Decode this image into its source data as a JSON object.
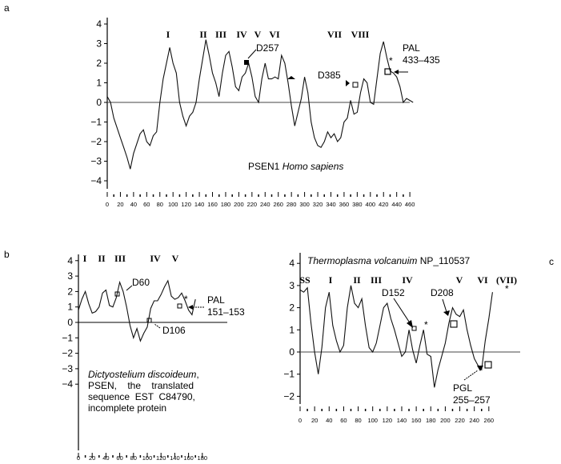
{
  "figure": {
    "panels": [
      {
        "id": "a",
        "panel_label": "a",
        "title_plain": "PSEN1 ",
        "title_italic": "Homo sapiens",
        "domains": [
          "I",
          "II",
          "III",
          "IV",
          "V",
          "VI",
          "VII",
          "VIII"
        ],
        "annotations": [
          "D257",
          "D385",
          "PAL",
          "433–435",
          "*"
        ],
        "yticks": [
          "4",
          "3",
          "2",
          "1",
          "0",
          "−1",
          "−2",
          "−3",
          "−4"
        ],
        "xticks": [
          "0",
          "20",
          "40",
          "60",
          "80",
          "100",
          "120",
          "140",
          "160",
          "180",
          "200",
          "220",
          "240",
          "260",
          "280",
          "300",
          "320",
          "340",
          "360",
          "380",
          "400",
          "420",
          "440",
          "460"
        ]
      },
      {
        "id": "b",
        "panel_label": "b",
        "title_italic": "Dictyostelium discoideum",
        "title_lines": [
          ",",
          "PSEN,    the    translated",
          "sequence  EST  C84790,",
          "incomplete protein"
        ],
        "domains": [
          "I",
          "II",
          "III",
          "IV",
          "V"
        ],
        "annotations": [
          "D60",
          "D106",
          "PAL",
          "151–153",
          "*"
        ],
        "yticks": [
          "4",
          "3",
          "2",
          "1",
          "0",
          "−1",
          "−2",
          "−3",
          "−4"
        ],
        "xticks": [
          "0",
          "20",
          "40",
          "60",
          "80",
          "100",
          "120",
          "140",
          "160",
          "180"
        ]
      },
      {
        "id": "c",
        "panel_label": "c",
        "title_italic": "Thermoplasma volcanuim",
        "title_plain": " NP_110537",
        "domains": [
          "SS",
          "I",
          "II",
          "III",
          "IV",
          "V",
          "VI",
          "(VII)"
        ],
        "annotations": [
          "D152",
          "D208",
          "PGL",
          "255–257",
          "*",
          "*"
        ],
        "yticks": [
          "4",
          "3",
          "2",
          "1",
          "0",
          "−1",
          "−2"
        ],
        "xticks": [
          "0",
          "20",
          "40",
          "60",
          "80",
          "100",
          "120",
          "140",
          "160",
          "180",
          "200",
          "220",
          "240",
          "260"
        ]
      }
    ]
  },
  "chart_data": [
    {
      "type": "line",
      "title": "PSEN1 Homo sapiens",
      "xlabel": "",
      "ylabel": "",
      "xlim": [
        0,
        467
      ],
      "ylim": [
        -4,
        4
      ],
      "grid": false,
      "legend": "none",
      "domain_labels": [
        "I",
        "II",
        "III",
        "IV",
        "V",
        "VI",
        "VII",
        "VIII"
      ],
      "annotations": [
        {
          "text": "D257",
          "x": 257,
          "y": 2.0
        },
        {
          "text": "D385",
          "x": 385,
          "y": 1.0
        },
        {
          "text": "PAL 433–435",
          "x": 433,
          "y": 1.5
        },
        {
          "text": "*",
          "x": 430,
          "y": 1.9
        }
      ],
      "x": [
        0,
        5,
        10,
        15,
        20,
        25,
        30,
        35,
        40,
        45,
        50,
        55,
        60,
        65,
        70,
        75,
        80,
        85,
        90,
        95,
        100,
        105,
        110,
        115,
        120,
        125,
        130,
        135,
        140,
        145,
        150,
        155,
        160,
        165,
        170,
        175,
        180,
        185,
        190,
        195,
        200,
        205,
        210,
        215,
        220,
        225,
        230,
        235,
        240,
        245,
        250,
        255,
        260,
        265,
        270,
        275,
        280,
        285,
        290,
        295,
        300,
        305,
        310,
        315,
        320,
        325,
        330,
        335,
        340,
        345,
        350,
        355,
        360,
        365,
        370,
        375,
        380,
        385,
        390,
        395,
        400,
        405,
        410,
        415,
        420,
        425,
        430,
        435,
        440,
        445,
        450,
        455,
        460,
        465
      ],
      "values": [
        0.3,
        0.0,
        -0.8,
        -1.3,
        -1.8,
        -2.3,
        -2.8,
        -3.4,
        -2.6,
        -2.1,
        -1.6,
        -1.4,
        -2.0,
        -2.2,
        -1.7,
        -1.5,
        0.0,
        1.2,
        2.0,
        2.8,
        2.0,
        1.5,
        0.0,
        -0.7,
        -1.2,
        -0.7,
        -0.5,
        0.0,
        1.2,
        2.2,
        3.2,
        2.4,
        1.5,
        1.0,
        0.3,
        1.5,
        2.4,
        2.6,
        1.8,
        0.8,
        0.6,
        1.3,
        1.5,
        2.0,
        1.3,
        0.3,
        0.0,
        1.2,
        2.0,
        1.2,
        1.2,
        1.3,
        1.2,
        2.4,
        2.0,
        1.0,
        -0.2,
        -1.2,
        -0.5,
        0.2,
        1.3,
        0.5,
        -1.0,
        -1.8,
        -2.2,
        -2.3,
        -2.0,
        -1.5,
        -1.8,
        -1.6,
        -2.0,
        -1.8,
        -1.0,
        -0.8,
        0.1,
        -0.6,
        -0.5,
        0.5,
        1.2,
        1.0,
        0.0,
        -0.1,
        1.2,
        2.5,
        3.1,
        2.3,
        1.6,
        1.5,
        1.3,
        0.8,
        0.0,
        0.2,
        0.1,
        0.0
      ]
    },
    {
      "type": "line",
      "title": "Dictyostelium discoideum, PSEN, the translated sequence EST C84790, incomplete protein",
      "xlabel": "",
      "ylabel": "",
      "xlim": [
        0,
        180
      ],
      "ylim": [
        -4,
        4
      ],
      "grid": false,
      "legend": "none",
      "domain_labels": [
        "I",
        "II",
        "III",
        "IV",
        "V"
      ],
      "annotations": [
        {
          "text": "D60",
          "x": 60,
          "y": 2.2
        },
        {
          "text": "D106",
          "x": 106,
          "y": 0.9
        },
        {
          "text": "PAL 151–153",
          "x": 151,
          "y": 1.6
        },
        {
          "text": "*",
          "x": 150,
          "y": 1.9
        }
      ],
      "x": [
        0,
        5,
        10,
        15,
        20,
        25,
        30,
        35,
        40,
        45,
        50,
        55,
        60,
        65,
        70,
        75,
        80,
        85,
        90,
        95,
        100,
        105,
        110,
        115,
        120,
        125,
        130,
        135,
        140,
        145,
        150,
        155,
        160,
        165,
        170
      ],
      "values": [
        0.8,
        1.5,
        2.0,
        1.2,
        0.6,
        0.7,
        1.0,
        1.9,
        2.1,
        1.1,
        1.0,
        1.6,
        2.6,
        2.0,
        1.0,
        -0.2,
        -1.0,
        -0.4,
        -1.2,
        -0.7,
        -0.3,
        0.9,
        1.4,
        1.4,
        1.8,
        2.3,
        2.7,
        1.7,
        1.5,
        1.6,
        1.9,
        1.4,
        0.8,
        0.5,
        1.5
      ]
    },
    {
      "type": "line",
      "title": "Thermoplasma volcanuim NP_110537",
      "xlabel": "",
      "ylabel": "",
      "xlim": [
        0,
        270
      ],
      "ylim": [
        -2.3,
        4
      ],
      "grid": false,
      "legend": "none",
      "domain_labels": [
        "SS",
        "I",
        "II",
        "III",
        "IV",
        "V",
        "VI",
        "(VII)"
      ],
      "annotations": [
        {
          "text": "D152",
          "x": 152,
          "y": 1.0
        },
        {
          "text": "D208",
          "x": 208,
          "y": 1.3
        },
        {
          "text": "PGL 255–257",
          "x": 255,
          "y": -0.5
        },
        {
          "text": "*",
          "x": 173,
          "y": 1.2
        },
        {
          "text": "*",
          "x": 266,
          "y": 2.8
        }
      ],
      "x": [
        0,
        5,
        10,
        15,
        20,
        25,
        30,
        35,
        40,
        45,
        50,
        55,
        60,
        65,
        70,
        75,
        80,
        85,
        90,
        95,
        100,
        105,
        110,
        115,
        120,
        125,
        130,
        135,
        140,
        145,
        150,
        155,
        160,
        165,
        170,
        175,
        180,
        185,
        190,
        195,
        200,
        205,
        210,
        215,
        220,
        225,
        230,
        235,
        240,
        245,
        250,
        255,
        260,
        265
      ],
      "values": [
        2.8,
        2.7,
        2.9,
        1.3,
        0.0,
        -1.0,
        0.2,
        2.0,
        2.7,
        1.2,
        0.5,
        0.0,
        0.3,
        2.0,
        3.0,
        2.2,
        2.0,
        2.4,
        1.2,
        0.2,
        0.0,
        0.4,
        1.2,
        2.0,
        2.2,
        1.5,
        1.0,
        0.4,
        -0.2,
        0.0,
        1.0,
        0.1,
        -0.5,
        0.3,
        1.0,
        -0.1,
        -0.2,
        -1.6,
        -0.8,
        -0.2,
        0.4,
        1.3,
        2.0,
        1.7,
        1.6,
        1.9,
        1.0,
        0.3,
        -0.3,
        -0.6,
        -0.8,
        0.5,
        1.5,
        2.7
      ]
    }
  ]
}
